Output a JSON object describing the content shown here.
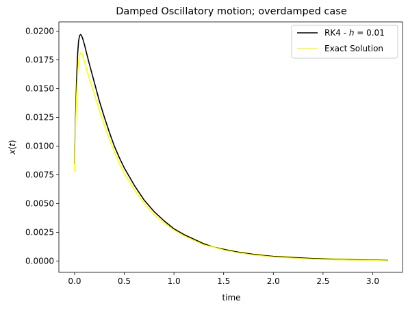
{
  "chart_data": {
    "type": "line",
    "title": "Damped Oscillatory motion; overdamped case",
    "xlabel": "time",
    "ylabel": "x(t)",
    "xlim": [
      -0.158,
      3.3
    ],
    "ylim": [
      -0.00099,
      0.0208
    ],
    "xticks": [
      0.0,
      0.5,
      1.0,
      1.5,
      2.0,
      2.5,
      3.0
    ],
    "xtick_labels": [
      "0.0",
      "0.5",
      "1.0",
      "1.5",
      "2.0",
      "2.5",
      "3.0"
    ],
    "yticks": [
      0.0,
      0.0025,
      0.005,
      0.0075,
      0.01,
      0.0125,
      0.015,
      0.0175,
      0.02
    ],
    "ytick_labels": [
      "0.0000",
      "0.0025",
      "0.0050",
      "0.0075",
      "0.0100",
      "0.0125",
      "0.0150",
      "0.0175",
      "0.0200"
    ],
    "grid": false,
    "legend_position": "top-right",
    "series": [
      {
        "name": "RK4 - h = 0.01",
        "legend_parts": [
          "RK4 - ",
          "h",
          " = 0.01"
        ],
        "color": "#000000",
        "x": [
          0.0,
          0.01,
          0.02,
          0.03,
          0.04,
          0.05,
          0.06,
          0.07,
          0.08,
          0.09,
          0.1,
          0.12,
          0.15,
          0.2,
          0.25,
          0.3,
          0.35,
          0.4,
          0.45,
          0.5,
          0.6,
          0.7,
          0.8,
          0.9,
          1.0,
          1.1,
          1.2,
          1.3,
          1.4,
          1.5,
          1.6,
          1.7,
          1.8,
          1.9,
          2.0,
          2.2,
          2.4,
          2.6,
          2.8,
          3.0,
          3.15
        ],
        "y": [
          0.0085,
          0.0125,
          0.0157,
          0.0179,
          0.0191,
          0.0196,
          0.0197,
          0.0196,
          0.0194,
          0.0191,
          0.0188,
          0.0181,
          0.0171,
          0.0155,
          0.0139,
          0.0125,
          0.0112,
          0.01,
          0.009,
          0.0081,
          0.0066,
          0.0053,
          0.0043,
          0.0035,
          0.0028,
          0.0023,
          0.0019,
          0.0015,
          0.0012,
          0.00102,
          0.00084,
          0.0007,
          0.00058,
          0.00048,
          0.0004,
          0.0003,
          0.00021,
          0.00015,
          0.00011,
          7e-05,
          5e-05
        ]
      },
      {
        "name": "Exact Solution",
        "color": "#ffff00",
        "x": [
          0.0,
          0.01,
          0.02,
          0.03,
          0.04,
          0.05,
          0.06,
          0.07,
          0.08,
          0.09,
          0.1,
          0.12,
          0.15,
          0.2,
          0.25,
          0.3,
          0.35,
          0.4,
          0.45,
          0.5,
          0.6,
          0.7,
          0.8,
          0.9,
          1.0,
          1.1,
          1.2,
          1.3,
          1.4,
          1.5,
          1.6,
          1.7,
          1.8,
          1.9,
          2.0,
          2.2,
          2.4,
          2.6,
          2.8,
          3.0,
          3.15
        ],
        "y": [
          0.0078,
          0.0116,
          0.0143,
          0.0162,
          0.0173,
          0.0179,
          0.0181,
          0.0181,
          0.0179,
          0.0176,
          0.0173,
          0.0167,
          0.0158,
          0.0145,
          0.0131,
          0.0118,
          0.0106,
          0.0095,
          0.0085,
          0.0076,
          0.0062,
          0.005,
          0.004,
          0.0033,
          0.0027,
          0.0022,
          0.0018,
          0.0014,
          0.0012,
          0.00095,
          0.00078,
          0.00064,
          0.00052,
          0.00043,
          0.00035,
          0.00024,
          0.00016,
          0.00011,
          7e-05,
          4e-05,
          2e-05
        ]
      }
    ]
  }
}
